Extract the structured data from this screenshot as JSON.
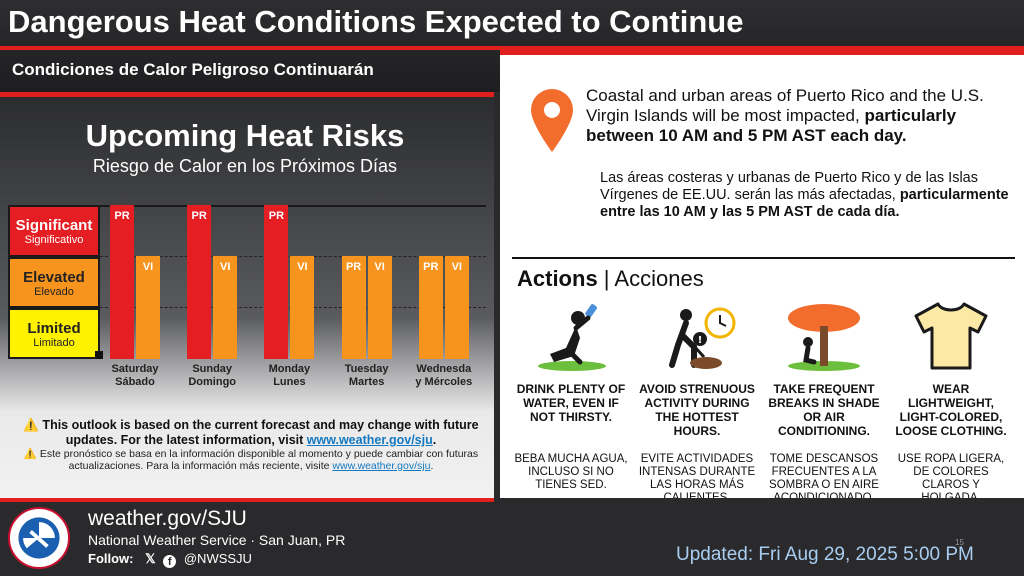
{
  "header": {
    "title": "Dangerous Heat Conditions Expected to Continue",
    "subtitle": "Condiciones de Calor Peligroso Continuarán"
  },
  "risk_chart": {
    "title": "Upcoming Heat Risks",
    "subtitle": "Riesgo de Calor en los Próximos Días",
    "levels": [
      {
        "en": "Significant",
        "es": "Significativo",
        "color": "#e41e22"
      },
      {
        "en": "Elevated",
        "es": "Elevado",
        "color": "#f7941d"
      },
      {
        "en": "Limited",
        "es": "Limitado",
        "color": "#fef200"
      }
    ],
    "days": [
      {
        "en": "Saturday",
        "es": "Sábado",
        "PR": "Significant",
        "VI": "Elevated"
      },
      {
        "en": "Sunday",
        "es": "Domingo",
        "PR": "Significant",
        "VI": "Elevated"
      },
      {
        "en": "Monday",
        "es": "Lunes",
        "PR": "Significant",
        "VI": "Elevated"
      },
      {
        "en": "Tuesday",
        "es": "Martes",
        "PR": "Elevated",
        "VI": "Elevated"
      },
      {
        "en": "Wednesda",
        "es": "y Mércoles",
        "PR": "Elevated",
        "VI": "Elevated"
      }
    ],
    "labels": {
      "pr": "PR",
      "vi": "VI"
    }
  },
  "outlook_note": {
    "en": "⚠️ This outlook is based on the current forecast and may change with future updates. For the latest information, visit",
    "en_link": "www.weather.gov/sju",
    "en_end": ".",
    "es": "⚠️ Este pronóstico se basa en la información disponible al momento y puede cambiar con futuras actualizaciones. Para la información más reciente, visite",
    "es_link": "www.weather.gov/sju",
    "es_end": "."
  },
  "impact": {
    "en_plain": "Coastal and urban areas of Puerto Rico and the U.S. Virgin Islands will be most impacted,",
    "en_bold": "particularly between 10 AM and 5 PM AST each day.",
    "es_plain": "Las áreas costeras y urbanas de Puerto Rico y de las Islas Vírgenes de EE.UU. serán las más afectadas,",
    "es_bold": "particularmente entre las 10 AM y las 5 PM AST de cada día."
  },
  "actions": {
    "heading_en": "Actions",
    "heading_sep": " | ",
    "heading_es": "Acciones",
    "items": [
      {
        "icon": "drinking-water-icon",
        "en": "DRINK PLENTY OF WATER, EVEN IF NOT THIRSTY.",
        "es": "BEBA MUCHA AGUA, INCLUSO SI NO TIENES SED."
      },
      {
        "icon": "strenuous-activity-icon",
        "en": "AVOID STRENUOUS ACTIVITY DURING THE HOTTEST HOURS.",
        "es": "EVITE ACTIVIDADES INTENSAS DURANTE LAS HORAS MÁS CALIENTES."
      },
      {
        "icon": "shade-tree-icon",
        "en": "TAKE FREQUENT BREAKS IN SHADE OR AIR CONDITIONING.",
        "es": "TOME DESCANSOS FRECUENTES A LA SOMBRA O EN AIRE ACONDICIONADO."
      },
      {
        "icon": "tshirt-icon",
        "en": "WEAR LIGHTWEIGHT, LIGHT-COLORED, LOOSE CLOTHING.",
        "es": "USE ROPA LIGERA, DE COLORES CLAROS Y HOLGADA."
      }
    ]
  },
  "footer": {
    "url": "weather.gov/SJU",
    "org": "National Weather Service · San Juan, PR",
    "follow_label": "Follow:",
    "handle": "@NWSSJU",
    "logo_text": "NATIONAL WEATHER SERVICE",
    "updated": "Updated: Fri Aug 29, 2025 5:00 PM",
    "page_number": "15"
  },
  "colors": {
    "accent_red": "#e0201c",
    "orange": "#f7941d",
    "link_blue": "#1479c2",
    "updated_text": "#a9cdf0"
  }
}
